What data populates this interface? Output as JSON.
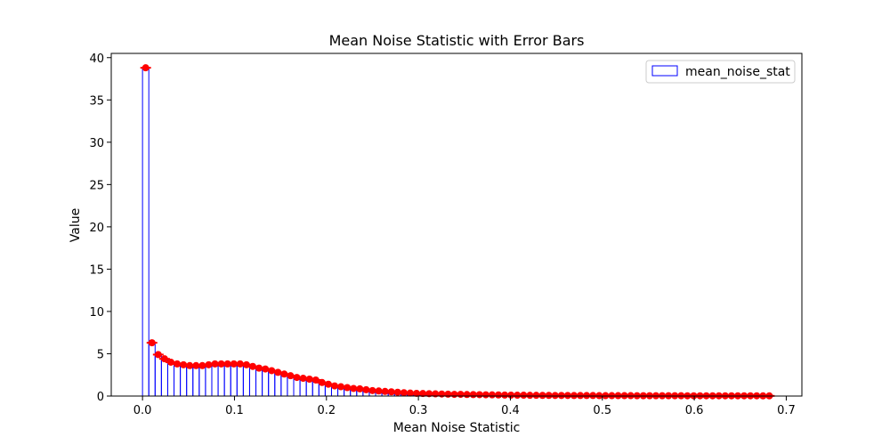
{
  "chart_data": {
    "type": "bar",
    "title": "Mean Noise Statistic with Error Bars",
    "xlabel": "Mean Noise Statistic",
    "ylabel": "Value",
    "xlim": [
      -0.034,
      0.717
    ],
    "ylim": [
      0,
      40.5
    ],
    "xticks": [
      0.0,
      0.1,
      0.2,
      0.3,
      0.4,
      0.5,
      0.6,
      0.7
    ],
    "xtick_labels": [
      "0.0",
      "0.1",
      "0.2",
      "0.3",
      "0.4",
      "0.5",
      "0.6",
      "0.7"
    ],
    "yticks": [
      0,
      5,
      10,
      15,
      20,
      25,
      30,
      35,
      40
    ],
    "ytick_labels": [
      "0",
      "5",
      "10",
      "15",
      "20",
      "25",
      "30",
      "35",
      "40"
    ],
    "grid": false,
    "legend": {
      "position": "upper right",
      "entries": [
        {
          "label": "mean_noise_stat"
        }
      ]
    },
    "bar_edge_color": "#0000ff",
    "error_color": "#ff0000",
    "bin_width": 0.00685,
    "x": [
      0.0,
      0.00685,
      0.0137,
      0.02055,
      0.0274,
      0.03425,
      0.0411,
      0.04795,
      0.0548,
      0.06165,
      0.0685,
      0.07535,
      0.0822,
      0.08905,
      0.0959,
      0.10275,
      0.1096,
      0.11645,
      0.1233,
      0.13015,
      0.137,
      0.14385,
      0.1507,
      0.15755,
      0.1644,
      0.17125,
      0.1781,
      0.18495,
      0.1918,
      0.19865,
      0.2055,
      0.21235,
      0.2192,
      0.22605,
      0.2329,
      0.23975,
      0.2466,
      0.25345,
      0.2603,
      0.26715,
      0.274,
      0.28085,
      0.2877,
      0.29455,
      0.3014,
      0.30825,
      0.3151,
      0.32195,
      0.3288,
      0.33565,
      0.3425,
      0.34935,
      0.3562,
      0.36305,
      0.3699,
      0.37675,
      0.3836,
      0.39045,
      0.3973,
      0.40415,
      0.411,
      0.41785,
      0.4247,
      0.43155,
      0.4384,
      0.44525,
      0.4521,
      0.45895,
      0.4658,
      0.47265,
      0.4795,
      0.48635,
      0.4932,
      0.50005,
      0.5069,
      0.51375,
      0.5206,
      0.52745,
      0.5343,
      0.54115,
      0.548,
      0.55485,
      0.5617,
      0.56855,
      0.5754,
      0.58225,
      0.5891,
      0.59595,
      0.6028,
      0.60965,
      0.6165,
      0.62335,
      0.6302,
      0.63705,
      0.6439,
      0.65075,
      0.6576,
      0.66445,
      0.6713,
      0.67815
    ],
    "values": [
      38.8,
      6.3,
      4.9,
      4.4,
      4.0,
      3.8,
      3.7,
      3.6,
      3.6,
      3.6,
      3.7,
      3.8,
      3.8,
      3.8,
      3.8,
      3.8,
      3.7,
      3.5,
      3.3,
      3.2,
      3.0,
      2.8,
      2.6,
      2.4,
      2.2,
      2.1,
      2.0,
      1.9,
      1.6,
      1.4,
      1.2,
      1.1,
      1.0,
      0.9,
      0.85,
      0.75,
      0.65,
      0.6,
      0.55,
      0.5,
      0.45,
      0.4,
      0.35,
      0.32,
      0.3,
      0.28,
      0.26,
      0.24,
      0.22,
      0.2,
      0.2,
      0.18,
      0.17,
      0.16,
      0.15,
      0.14,
      0.13,
      0.12,
      0.11,
      0.1,
      0.1,
      0.09,
      0.09,
      0.08,
      0.08,
      0.07,
      0.07,
      0.07,
      0.06,
      0.06,
      0.06,
      0.06,
      0.05,
      0.05,
      0.05,
      0.05,
      0.05,
      0.05,
      0.04,
      0.04,
      0.04,
      0.04,
      0.04,
      0.04,
      0.04,
      0.04,
      0.03,
      0.03,
      0.03,
      0.03,
      0.03,
      0.03,
      0.03,
      0.03,
      0.03,
      0.03,
      0.03,
      0.03,
      0.02,
      0.02
    ]
  }
}
